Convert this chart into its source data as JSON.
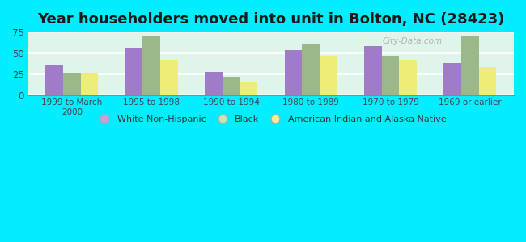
{
  "title": "Year householders moved into unit in Bolton, NC (28423)",
  "categories": [
    "1999 to March\n2000",
    "1995 to 1998",
    "1990 to 1994",
    "1980 to 1989",
    "1970 to 1979",
    "1969 or earlier"
  ],
  "series": {
    "White Non-Hispanic": [
      35,
      57,
      28,
      54,
      59,
      38
    ],
    "Black": [
      26,
      70,
      22,
      62,
      46,
      70
    ],
    "American Indian and Alaska Native": [
      26,
      42,
      15,
      47,
      41,
      33
    ]
  },
  "bar_colors": {
    "White Non-Hispanic": "#a07cc8",
    "Black": "#9ab88a",
    "American Indian and Alaska Native": "#eded78"
  },
  "legend_colors": {
    "White Non-Hispanic": "#c8a0e0",
    "Black": "#d0e0b0",
    "American Indian and Alaska Native": "#f0f090"
  },
  "ylim": [
    0,
    75
  ],
  "yticks": [
    0,
    25,
    50,
    75
  ],
  "bg_color": "#00eeff",
  "plot_bg_top": "#e8f8f0",
  "plot_bg_bottom": "#d0f0e8",
  "bar_width": 0.22,
  "title_fontsize": 13,
  "title_color": "#1a1a1a"
}
